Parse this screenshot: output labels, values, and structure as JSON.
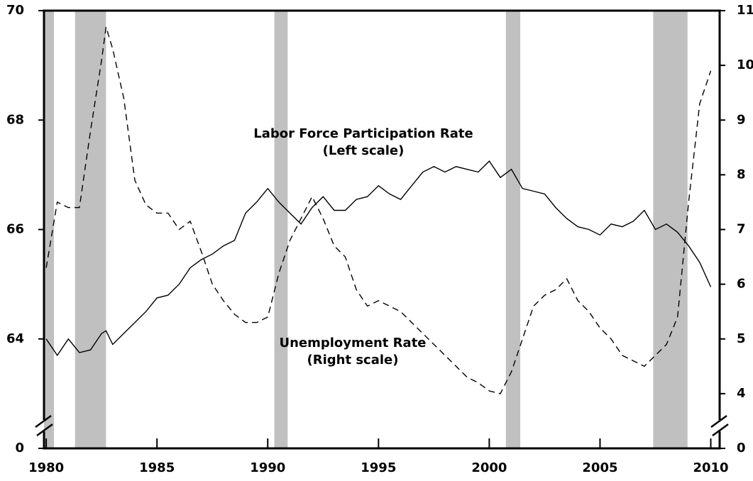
{
  "chart_data": {
    "type": "line",
    "annotations": [
      "Labor Force Participation Rate",
      "(Left scale)",
      "Unemployment Rate",
      "(Right scale)"
    ],
    "x": [
      1980,
      1980.5,
      1981,
      1981.5,
      1982,
      1982.5,
      1982.7,
      1983,
      1983.5,
      1984,
      1984.5,
      1985,
      1985.5,
      1986,
      1986.5,
      1987,
      1987.5,
      1988,
      1988.5,
      1989,
      1989.5,
      1990,
      1990.5,
      1991,
      1991.5,
      1992,
      1992.5,
      1993,
      1993.5,
      1994,
      1994.5,
      1995,
      1995.5,
      1996,
      1996.5,
      1997,
      1997.5,
      1998,
      1998.5,
      1999,
      1999.5,
      2000,
      2000.5,
      2001,
      2001.5,
      2002,
      2002.5,
      2003,
      2003.5,
      2004,
      2004.5,
      2005,
      2005.5,
      2006,
      2006.5,
      2007,
      2007.5,
      2008,
      2008.5,
      2009,
      2009.5,
      2010
    ],
    "series": [
      {
        "name": "Labor Force Participation Rate",
        "color": "#000000",
        "style": "solid",
        "values": [
          64.0,
          63.7,
          64.0,
          63.75,
          63.8,
          64.1,
          64.15,
          63.9,
          64.1,
          64.3,
          64.5,
          64.75,
          64.8,
          65.0,
          65.3,
          65.45,
          65.55,
          65.7,
          65.8,
          66.3,
          66.5,
          66.75,
          66.5,
          66.3,
          66.1,
          66.4,
          66.6,
          66.35,
          66.35,
          66.55,
          66.6,
          66.8,
          66.65,
          66.55,
          66.8,
          67.05,
          67.15,
          67.05,
          67.15,
          67.1,
          67.05,
          67.25,
          66.95,
          67.1,
          66.75,
          66.7,
          66.65,
          66.4,
          66.2,
          66.05,
          66.0,
          65.9,
          66.1,
          66.05,
          66.15,
          66.35,
          66.0,
          66.1,
          65.95,
          65.7,
          65.4,
          64.95
        ]
      },
      {
        "name": "Unemployment Rate",
        "color": "#000000",
        "style": "dashed",
        "axis": "y2",
        "values": [
          6.3,
          7.5,
          7.4,
          7.4,
          8.8,
          10.1,
          10.7,
          10.3,
          9.4,
          7.9,
          7.45,
          7.3,
          7.3,
          7.0,
          7.15,
          6.6,
          6.0,
          5.7,
          5.45,
          5.3,
          5.3,
          5.4,
          6.2,
          6.8,
          7.2,
          7.6,
          7.2,
          6.7,
          6.5,
          5.9,
          5.6,
          5.7,
          5.6,
          5.5,
          5.3,
          5.1,
          4.9,
          4.7,
          4.5,
          4.3,
          4.2,
          4.05,
          4.0,
          4.4,
          5.0,
          5.6,
          5.8,
          5.9,
          6.1,
          5.7,
          5.5,
          5.2,
          5.0,
          4.7,
          4.6,
          4.5,
          4.7,
          4.9,
          5.4,
          7.5,
          9.3,
          9.9
        ]
      }
    ],
    "shaded_periods": [
      [
        1979.9,
        1980.35
      ],
      [
        1981.3,
        1982.7
      ],
      [
        1990.3,
        1990.9
      ],
      [
        2000.75,
        2001.4
      ],
      [
        2007.4,
        2008.95
      ]
    ],
    "shade_color": "#c0c0c0",
    "xlim": [
      1979.9,
      2010.4
    ],
    "xticks": [
      1980,
      1985,
      1990,
      1995,
      2000,
      2005,
      2010
    ],
    "ylim": [
      0,
      70
    ],
    "ybreak": [
      0,
      62
    ],
    "yticks": [
      0,
      64,
      66,
      68,
      70
    ],
    "y2lim": [
      0,
      11
    ],
    "y2break": [
      0,
      3
    ],
    "y2ticks": [
      0,
      4,
      5,
      6,
      7,
      8,
      9,
      10,
      11
    ],
    "grid": false
  }
}
